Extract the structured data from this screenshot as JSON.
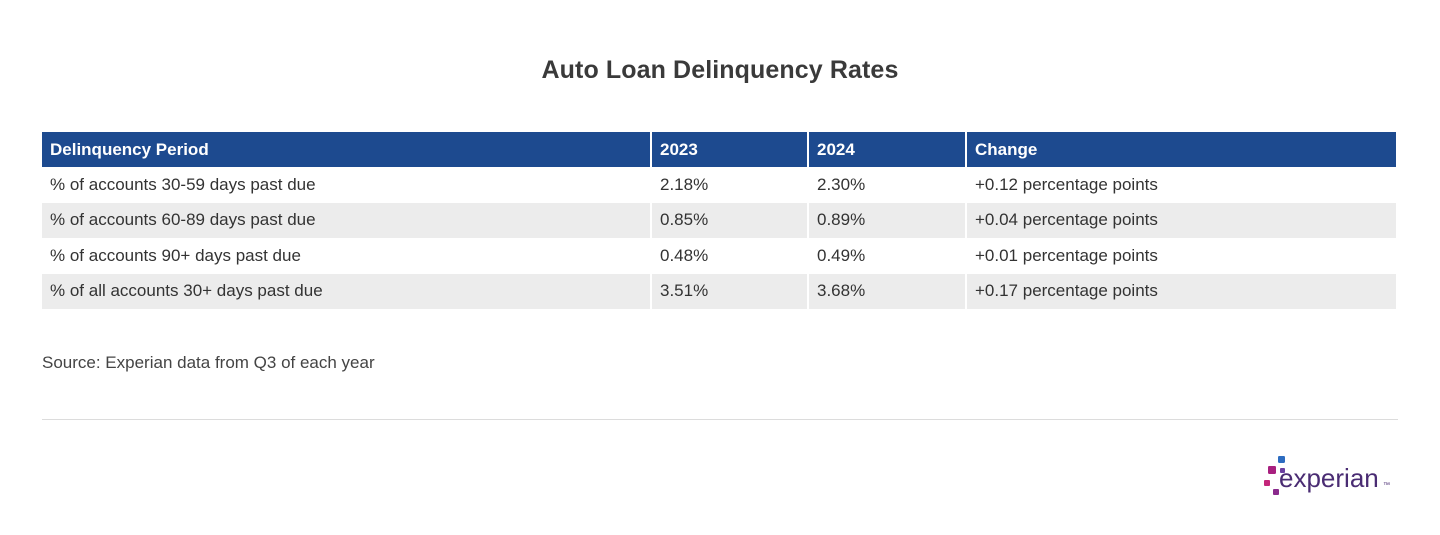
{
  "chart_data": {
    "type": "table",
    "title": "Auto Loan Delinquency Rates",
    "columns": [
      "Delinquency Period",
      "2023",
      "2024",
      "Change"
    ],
    "rows": [
      [
        "% of accounts 30-59 days past due",
        "2.18%",
        "2.30%",
        "+0.12 percentage points"
      ],
      [
        "% of accounts 60-89 days past due",
        "0.85%",
        "0.89%",
        "+0.04 percentage points"
      ],
      [
        "% of accounts 90+ days past due",
        "0.48%",
        "0.49%",
        "+0.01 percentage points"
      ],
      [
        "% of all accounts 30+ days past due",
        "3.51%",
        "3.68%",
        "+0.17 percentage points"
      ]
    ],
    "source": "Source: Experian data from Q3 of each year"
  },
  "brand": {
    "logo_text": "experian",
    "logo_mark": "™",
    "header_color": "#1d4a8f",
    "stripe_color": "#ececec",
    "logo_text_color": "#4a2c73",
    "dot_colors": [
      "#2d6cc0",
      "#a8207f",
      "#6b3fa0",
      "#c4267a",
      "#8a2a8c"
    ]
  }
}
